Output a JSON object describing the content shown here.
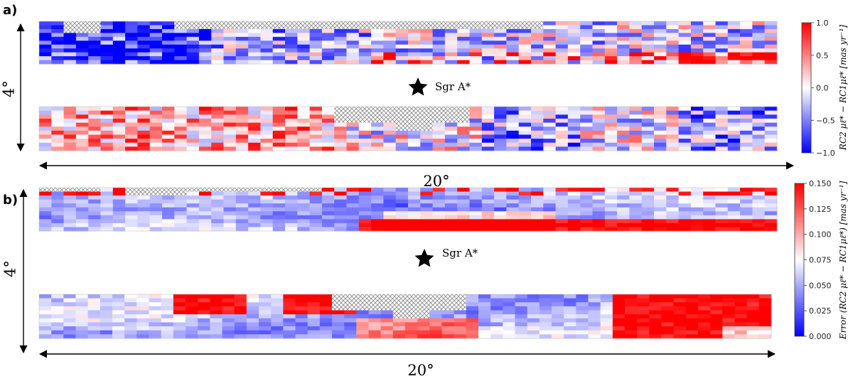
{
  "chart_data": [
    {
      "type": "heatmap",
      "panel": "a)",
      "colormap": "bwr",
      "colors": {
        "low": "#0000ff",
        "mid": "#ffffff",
        "high": "#ff0000",
        "masked": "#aaaaaa"
      },
      "width_label": "20°",
      "height_label": "4°",
      "marker_label": "Sgr A*",
      "colorbar": {
        "label": "RC2 μℓ* − RC1μℓ* [mas yr⁻¹]",
        "range": [
          -1.0,
          1.0
        ],
        "ticks": [
          "1.0",
          "0.5",
          "0.0",
          "−0.5",
          "−1.0"
        ]
      },
      "strips": [
        {
          "name": "upper",
          "grid": [
            60,
            11
          ],
          "masked_regions": [
            [
              2,
              0,
              3,
              3
            ],
            [
              11,
              0,
              30,
              2
            ],
            [
              25,
              0,
              6,
              2
            ]
          ],
          "pattern": "mixed, blue-dominated at left, scattered red at bottom right"
        },
        {
          "name": "lower",
          "grid": [
            60,
            11
          ],
          "masked_regions": [
            [
              24,
              0,
              11,
              4
            ],
            [
              29,
              4,
              3,
              2
            ]
          ],
          "pattern": "red-dominated at left, blue-dominated at right"
        }
      ]
    },
    {
      "type": "heatmap",
      "panel": "b)",
      "colormap": "bwr",
      "colors": {
        "low": "#0000ff",
        "mid": "#ffffff",
        "high": "#ff0000",
        "masked": "#aaaaaa"
      },
      "width_label": "20°",
      "height_label": "4°",
      "marker_label": "Sgr A*",
      "colorbar": {
        "label": "Error (RC2 μℓ* − RC1μℓ*) [mas yr⁻¹]",
        "range": [
          0.0,
          0.15
        ],
        "ticks": [
          "0.150",
          "0.125",
          "0.100",
          "0.075",
          "0.050",
          "0.025",
          "0.000"
        ]
      },
      "strips": [
        {
          "name": "upper",
          "grid": [
            60,
            11
          ],
          "masked_regions": [
            [
              0,
              0,
              5,
              1
            ],
            [
              7,
              0,
              5,
              2
            ],
            [
              10,
              0,
              13,
              1
            ]
          ],
          "pattern": "light blue smooth field, saturated red band along bottom on right half"
        },
        {
          "name": "lower",
          "grid": [
            60,
            11
          ],
          "masked_regions": [
            [
              24,
              0,
              11,
              4
            ],
            [
              29,
              4,
              3,
              2
            ]
          ],
          "pattern": "red at top-middle and right, light blue elsewhere"
        }
      ]
    }
  ]
}
